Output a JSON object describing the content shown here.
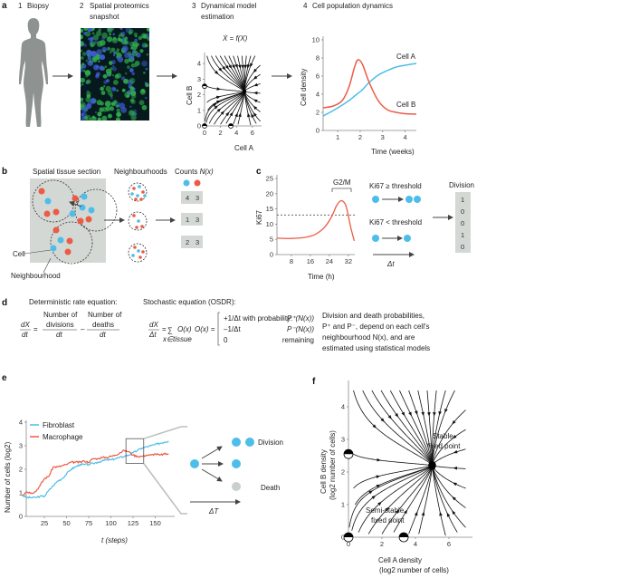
{
  "colors": {
    "blue": "#4dbde9",
    "red": "#ec5b45",
    "gray_bg": "#d3d8d5",
    "silhouette": "#8e9391",
    "death": "#c9cfcc"
  },
  "panel_a": {
    "label": "a",
    "steps": [
      {
        "num": "1",
        "title": "Biopsy",
        "title2": ""
      },
      {
        "num": "2",
        "title": "Spatial proteomics",
        "title2": "snapshot"
      },
      {
        "num": "3",
        "title": "Dynamical model",
        "title2": "estimation"
      },
      {
        "num": "4",
        "title": "Cell population dynamics",
        "title2": ""
      }
    ],
    "phase_title": "Ẋ = f(X)",
    "phase_xlabel": "Cell A",
    "phase_ylabel": "Cell B",
    "phase_xticks": [
      "0",
      "2",
      "4",
      "6"
    ],
    "phase_yticks": [
      "0",
      "1",
      "2",
      "3",
      "4"
    ],
    "icons": {
      "person": "person-silhouette-icon",
      "image": "tissue-image"
    }
  },
  "panel_b": {
    "label": "b",
    "tissue_title": "Spatial tissue section",
    "neigh_title": "Neighbourhoods",
    "counts_title": "Counts ",
    "counts_title_italic": "N(x)",
    "radius_label": "r",
    "cell_label": "Cell",
    "neighbourhood_label": "Neighbourhood",
    "counts": [
      [
        "4",
        "3"
      ],
      [
        "1",
        "3"
      ],
      [
        "2",
        "3"
      ]
    ]
  },
  "panel_c": {
    "label": "c",
    "g2m_label": "G2/M",
    "ge_label": "Ki67 ≥ threshold",
    "lt_label": "Ki67 < threshold",
    "dt_label": "Δt",
    "division_title": "Division",
    "division_values": [
      "1",
      "0",
      "0",
      "1",
      "0"
    ]
  },
  "panel_d": {
    "label": "d",
    "det_title": "Deterministic rate equation:",
    "sto_title": "Stochastic equation (OSDR):",
    "dX": "dX",
    "dt": "dt",
    "eq": "=",
    "minus": "–",
    "num_of": "Number of",
    "divisions": "divisions",
    "deaths": "deaths",
    "dDelta": "Δt",
    "sum": "∑",
    "sum_under": "x∈tissue",
    "Ox": "O(x)",
    "Ox_eq": "O(x) =",
    "case1": "+1/Δt with probability:",
    "case2": "–1/Δt",
    "case3": "0",
    "p1": "P⁺(N(x))",
    "p2": "P⁻(N(x))",
    "p3": "remaining",
    "desc": [
      "Division and death probabilities,",
      "P⁺ and P⁻, depend on each cell's",
      "neighbourhood N(x), and are",
      "estimated using statistical models"
    ]
  },
  "panel_e": {
    "label": "e",
    "division_label": "Division",
    "death_label": "Death",
    "dT_label": "ΔT"
  },
  "panel_f": {
    "label": "f",
    "stable_label": [
      "Stable",
      "fixed point"
    ],
    "semistable_label": [
      "Semi-stable",
      "fixed point"
    ]
  },
  "chart_data": [
    {
      "id": "a4",
      "type": "line",
      "title": "",
      "xlabel": "Time (weeks)",
      "ylabel": "Cell density",
      "xlim": [
        0.35,
        4.5
      ],
      "ylim": [
        0,
        10
      ],
      "xticks": [
        1,
        2,
        3,
        4
      ],
      "yticks": [
        0,
        2,
        4,
        6,
        8,
        10
      ],
      "grid": false,
      "legend": "inline labels",
      "x": [
        0.35,
        0.8,
        1.2,
        1.5,
        1.75,
        1.9,
        2.1,
        2.4,
        2.8,
        3.2,
        3.6,
        4.0,
        4.5
      ],
      "series": [
        {
          "name": "Cell A",
          "color": "#4dbde9",
          "values": [
            1.6,
            2.2,
            2.8,
            3.3,
            3.8,
            4.1,
            4.5,
            5.3,
            6.1,
            6.6,
            7.0,
            7.2,
            7.4
          ]
        },
        {
          "name": "Cell B",
          "color": "#ec5b45",
          "values": [
            2.5,
            2.7,
            3.3,
            4.8,
            7.0,
            7.8,
            7.3,
            5.3,
            3.3,
            2.3,
            2.0,
            1.85,
            1.8
          ]
        }
      ]
    },
    {
      "id": "c",
      "type": "line",
      "title": "",
      "xlabel": "Time (h)",
      "ylabel": "Ki67",
      "xlim": [
        2,
        35
      ],
      "ylim": [
        0,
        25
      ],
      "xticks": [
        8,
        16,
        24,
        32
      ],
      "yticks": [
        0,
        5,
        10,
        15,
        20,
        25
      ],
      "threshold": 13,
      "grid": false,
      "x": [
        2,
        8,
        14,
        18,
        22,
        25,
        27,
        29,
        31,
        33,
        34.5
      ],
      "series": [
        {
          "color": "#ec5b45",
          "values": [
            5.4,
            5.3,
            5.7,
            6.6,
            9,
            12.5,
            16,
            17.7,
            16,
            9,
            4.5
          ]
        }
      ]
    },
    {
      "id": "e",
      "type": "line",
      "title": "",
      "xlabel": "t (steps)",
      "ylabel": "Number of cells (log2)",
      "xlim": [
        0,
        170
      ],
      "ylim": [
        0,
        4
      ],
      "xticks": [
        25,
        50,
        75,
        100,
        125,
        150
      ],
      "yticks": [
        0,
        1,
        2,
        3,
        4
      ],
      "legend": "top-left",
      "grid": false,
      "x": [
        0,
        5,
        10,
        15,
        20,
        25,
        30,
        35,
        40,
        45,
        50,
        55,
        60,
        65,
        70,
        75,
        80,
        85,
        90,
        95,
        100,
        105,
        110,
        115,
        120,
        125,
        130,
        135,
        140,
        145,
        150,
        155,
        160,
        165
      ],
      "series": [
        {
          "name": "Fibroblast",
          "color": "#4dbde9",
          "values": [
            0.9,
            0.8,
            0.8,
            0.8,
            0.85,
            0.85,
            1.1,
            1.3,
            1.5,
            1.6,
            1.8,
            2.0,
            2.1,
            2.2,
            2.2,
            2.2,
            2.25,
            2.3,
            2.35,
            2.4,
            2.4,
            2.45,
            2.5,
            2.55,
            2.6,
            2.7,
            2.8,
            2.9,
            2.95,
            3.0,
            3.05,
            3.1,
            3.15,
            3.2
          ]
        },
        {
          "name": "Macrophage",
          "color": "#ec5b45",
          "values": [
            0.9,
            1.05,
            1.0,
            1.05,
            1.3,
            1.6,
            1.7,
            2.1,
            2.1,
            2.15,
            2.2,
            2.3,
            2.3,
            2.3,
            2.35,
            2.3,
            2.45,
            2.45,
            2.5,
            2.5,
            2.55,
            2.6,
            2.7,
            2.8,
            2.75,
            2.6,
            2.55,
            2.55,
            2.6,
            2.6,
            2.65,
            2.6,
            2.65,
            2.65
          ]
        }
      ],
      "zoom_window": {
        "x": [
          117,
          137
        ],
        "y": [
          2.25,
          3.3
        ]
      }
    },
    {
      "id": "f",
      "type": "scatter",
      "title": "",
      "xlabel": "Cell A density",
      "xlabel2": "(log2 number of cells)",
      "ylabel": "Cell B density",
      "ylabel2": "(log2 number of cells)",
      "xlim": [
        0,
        7
      ],
      "ylim": [
        0,
        4.6
      ],
      "xticks": [
        0,
        2,
        4,
        6
      ],
      "yticks": [
        0,
        1,
        2,
        3,
        4
      ],
      "fixed_points": [
        {
          "x": 5,
          "y": 2.2,
          "kind": "stable"
        },
        {
          "x": 0,
          "y": 0,
          "kind": "semi-stable"
        },
        {
          "x": 3.3,
          "y": 0,
          "kind": "semi-stable"
        },
        {
          "x": 0,
          "y": 2.55,
          "kind": "semi-stable"
        }
      ]
    }
  ]
}
